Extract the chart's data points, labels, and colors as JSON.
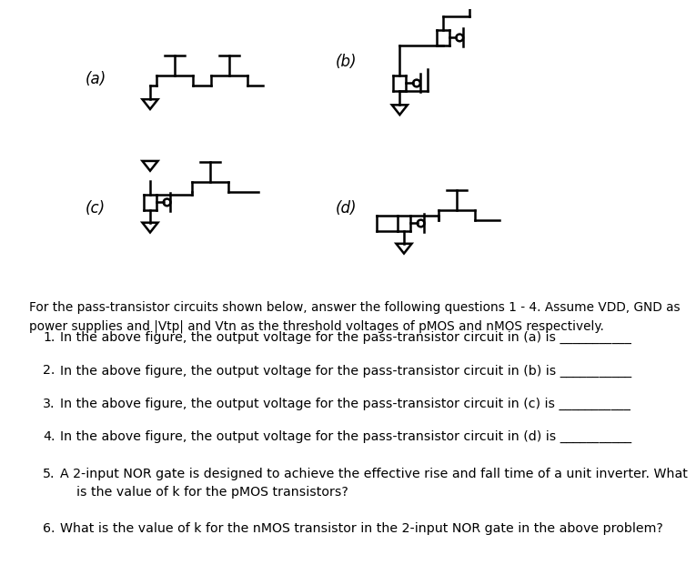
{
  "bg_color": "#ffffff",
  "lw": 1.6,
  "intro_text": "For the pass-transistor circuits shown below, answer the following questions 1 - 4. Assume VDD, GND as\npower supplies and |Vtp| and Vtn as the threshold voltages of pMOS and nMOS respectively.",
  "q1": "In the above figure, the output voltage for the pass-transistor circuit in (a) is ___________",
  "q2": "In the above figure, the output voltage for the pass-transistor circuit in (b) is ___________",
  "q3": "In the above figure, the output voltage for the pass-transistor circuit in (c) is ___________",
  "q4": "In the above figure, the output voltage for the pass-transistor circuit in (d) is ___________",
  "q5": "A 2-input NOR gate is designed to achieve the effective rise and fall time of a unit inverter. What\n    is the value of k for the pMOS transistors?",
  "q6": "What is the value of k for the nMOS transistor in the 2-input NOR gate in the above problem?"
}
